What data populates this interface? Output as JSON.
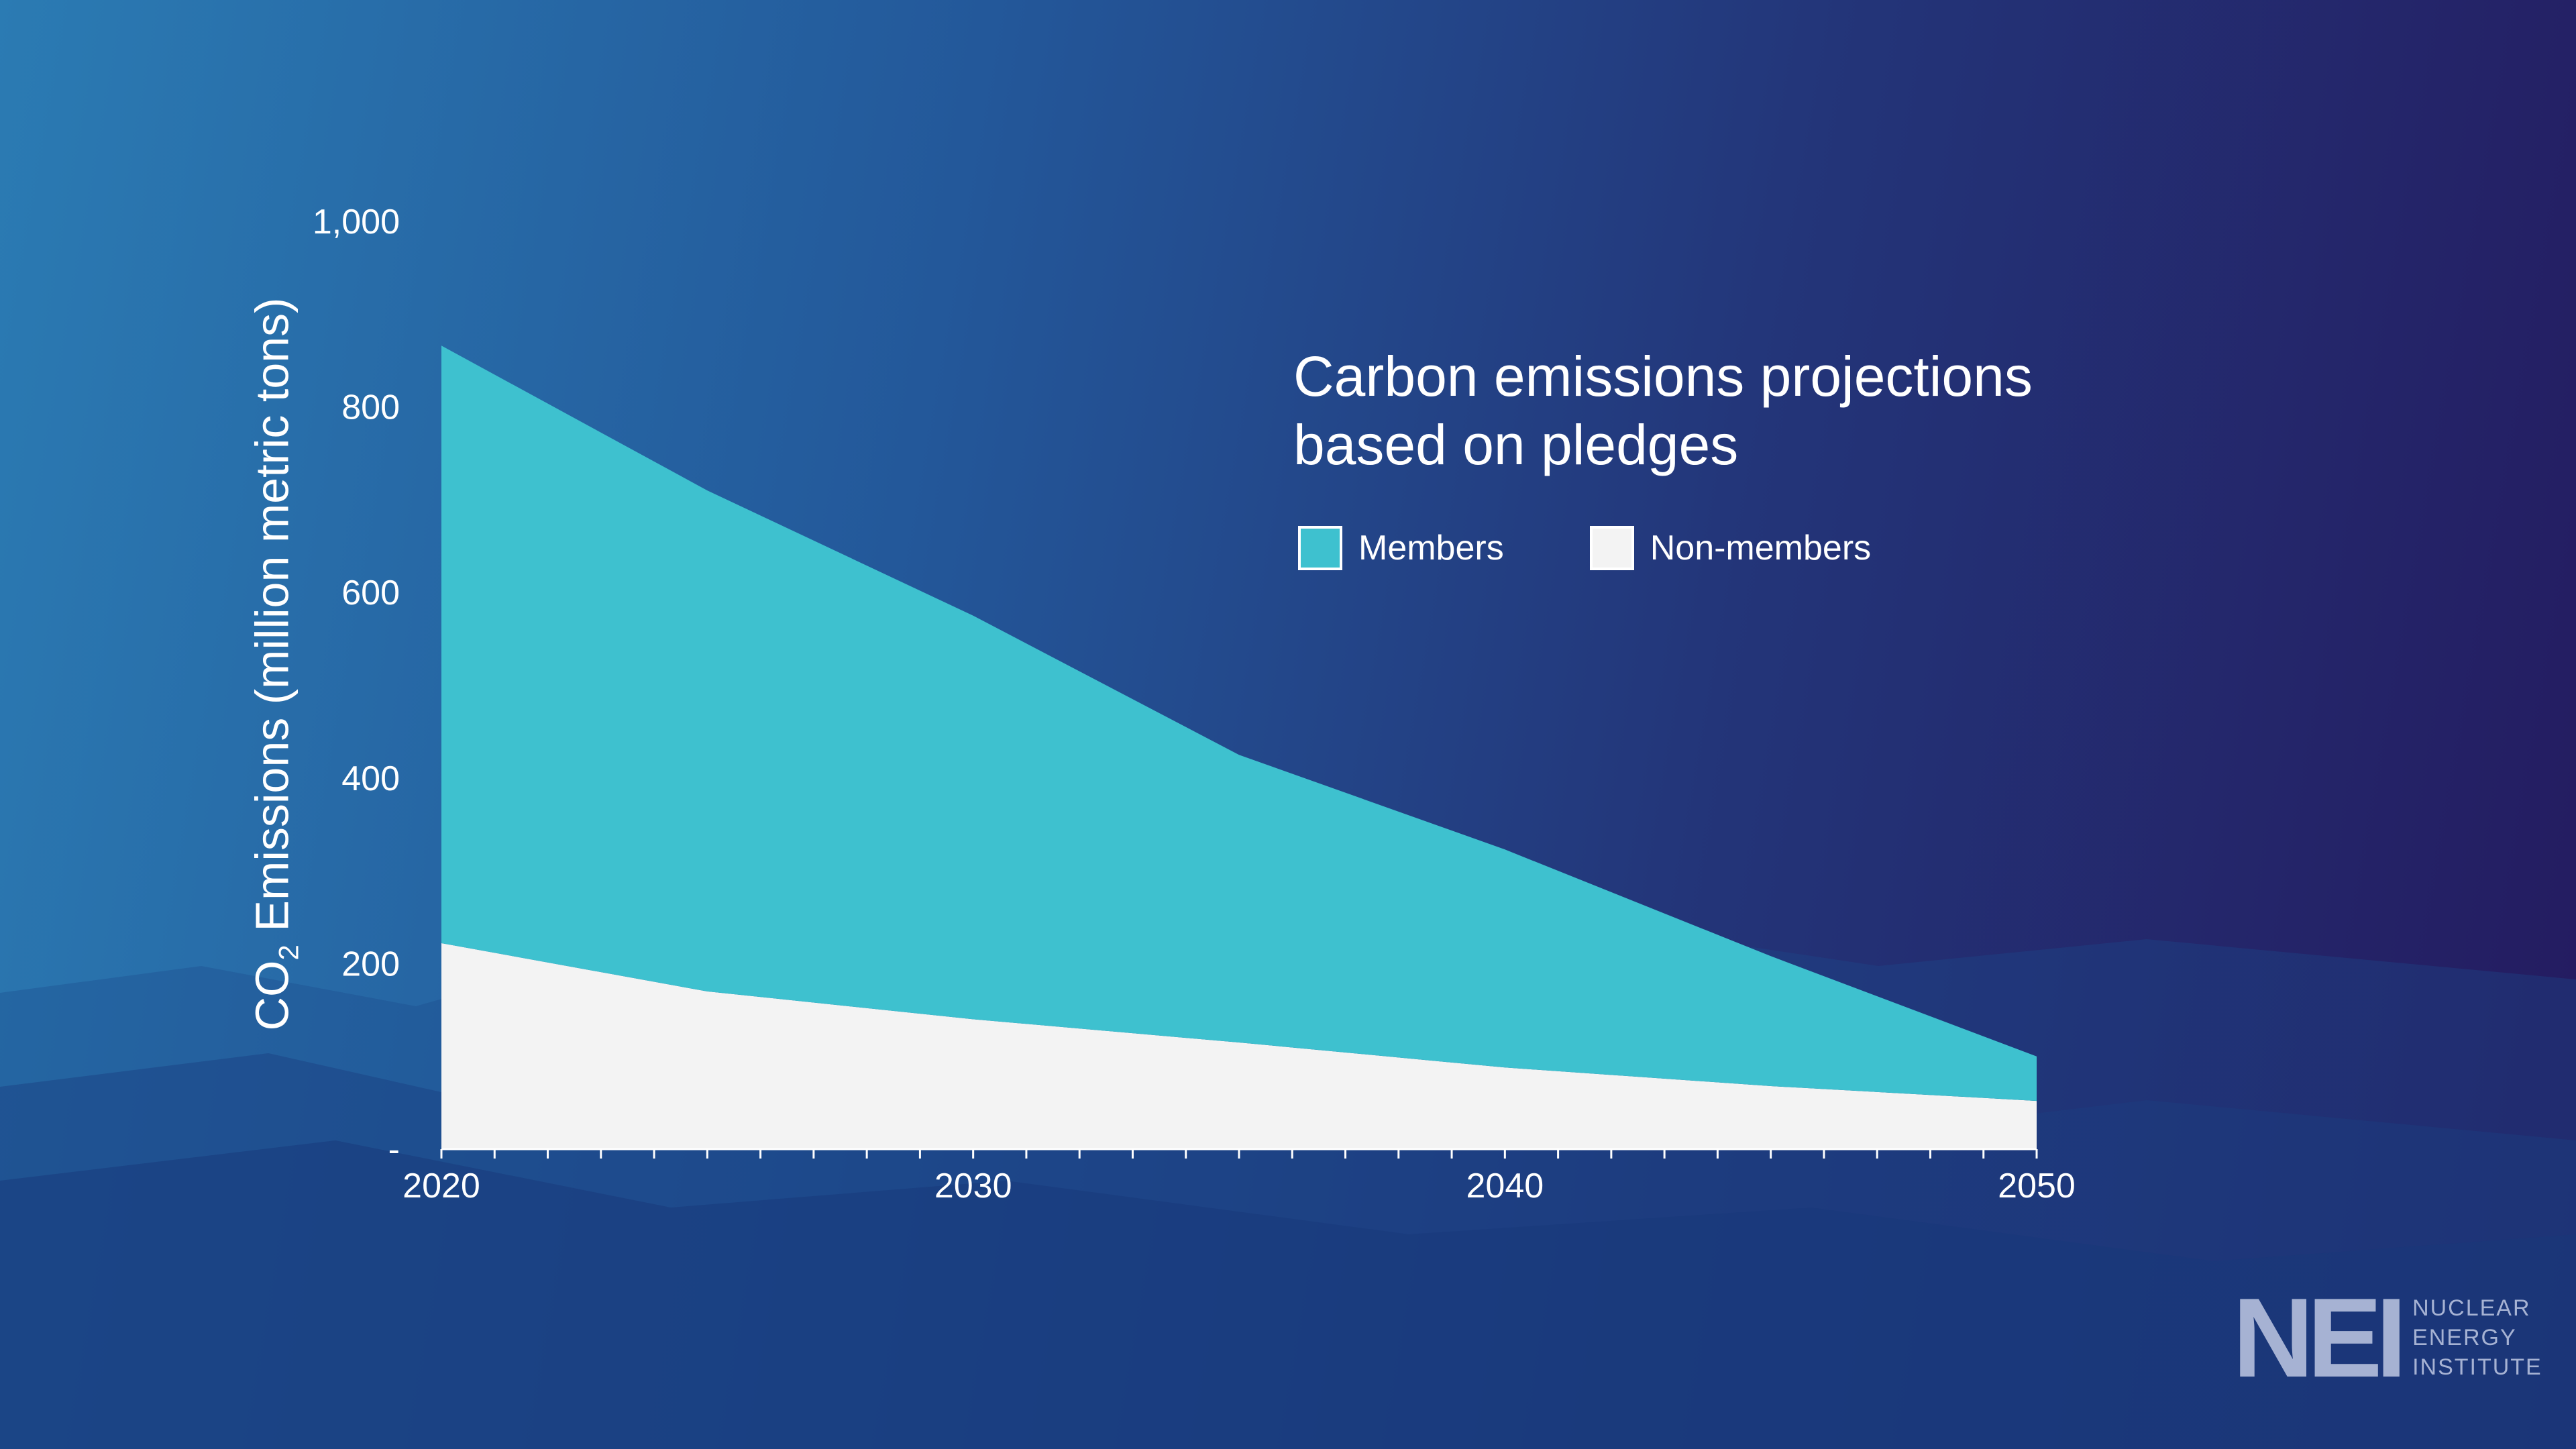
{
  "chart_data": {
    "type": "area",
    "stacked": true,
    "title": [
      "Carbon emissions projections",
      "based on pledges"
    ],
    "ylabel": {
      "main": "CO",
      "sub": "2",
      "rest": " Emissions (million metric tons)"
    },
    "xlabel": "",
    "x": [
      2020,
      2025,
      2030,
      2035,
      2040,
      2045,
      2050
    ],
    "xticks": [
      {
        "value": 2020,
        "label": "2020"
      },
      {
        "value": 2030,
        "label": "2030"
      },
      {
        "value": 2040,
        "label": "2040"
      },
      {
        "value": 2050,
        "label": "2050"
      }
    ],
    "yticks": [
      {
        "value": 0,
        "label": "-"
      },
      {
        "value": 200,
        "label": "200"
      },
      {
        "value": 400,
        "label": "400"
      },
      {
        "value": 600,
        "label": "600"
      },
      {
        "value": 800,
        "label": "800"
      },
      {
        "value": 1000,
        "label": "1,000"
      }
    ],
    "xlim": [
      2020,
      2050
    ],
    "ylim": [
      0,
      1000
    ],
    "grid": false,
    "legend": "top-right",
    "series": [
      {
        "name": "Non-members",
        "color": "#f3f3f3",
        "values": [
          222,
          170,
          140,
          115,
          88,
          68,
          52
        ]
      },
      {
        "name": "Members",
        "color": "#3ec1cf",
        "values": [
          644,
          540,
          435,
          310,
          235,
          140,
          48
        ]
      }
    ]
  },
  "logo": {
    "mark": "NEI",
    "lines": [
      "NUCLEAR",
      "ENERGY",
      "INSTITUTE"
    ]
  }
}
